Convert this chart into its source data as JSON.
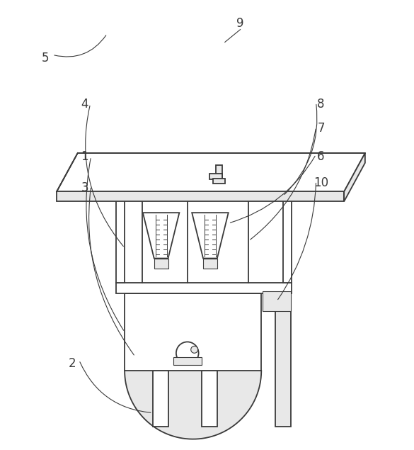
{
  "bg_color": "#ffffff",
  "line_color": "#3a3a3a",
  "lw": 1.3,
  "tlw": 0.8,
  "fc_light": "#e8e8e8",
  "fc_white": "#ffffff",
  "font_size": 12,
  "labels": [
    "1",
    "2",
    "3",
    "4",
    "5",
    "6",
    "7",
    "8",
    "9",
    "10"
  ]
}
